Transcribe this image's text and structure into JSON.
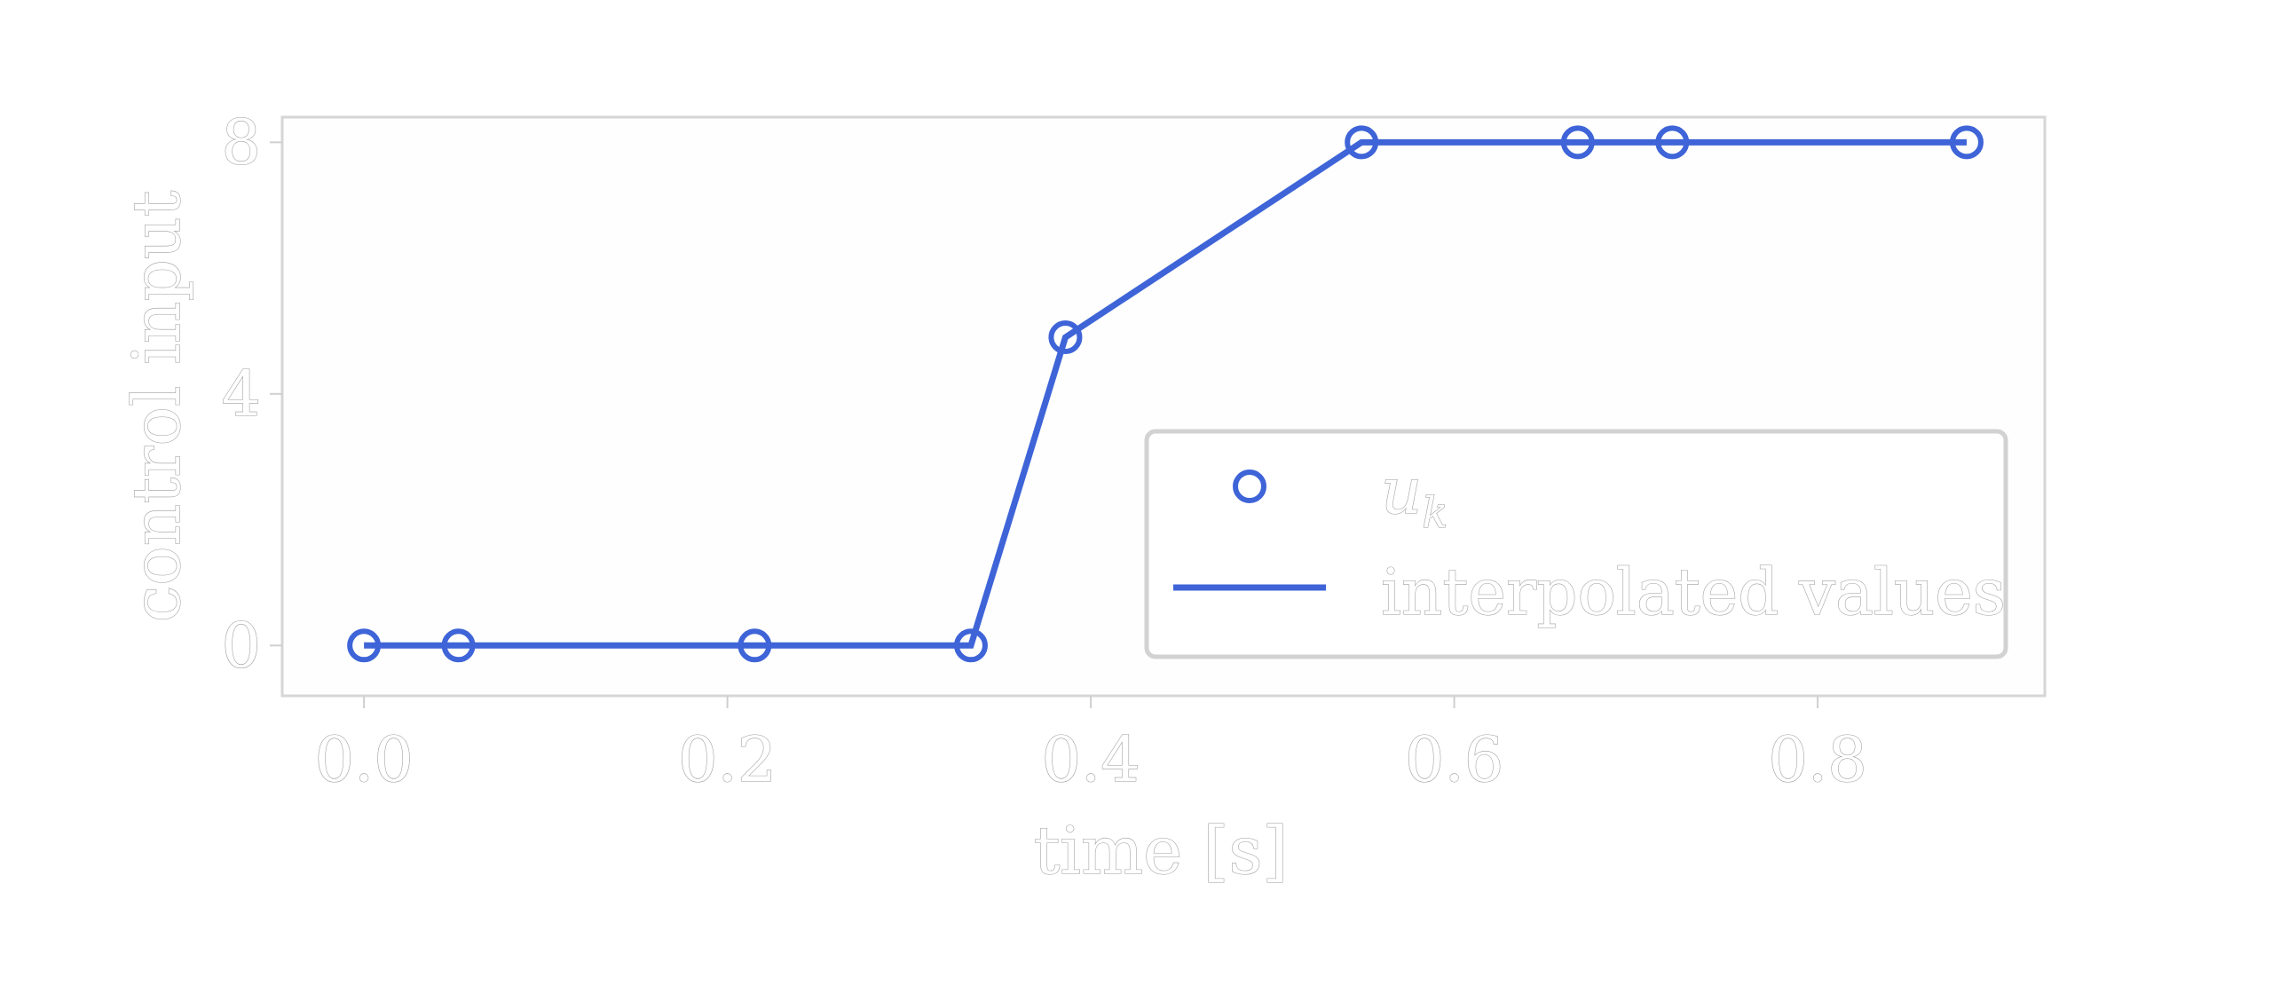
{
  "chart_data": {
    "type": "line",
    "xlabel": "time [s]",
    "ylabel": "control input",
    "xlim": [
      -0.045,
      0.925
    ],
    "ylim": [
      -0.8,
      8.4
    ],
    "xticks": [
      0.0,
      0.2,
      0.4,
      0.6,
      0.8
    ],
    "xtick_labels": [
      "0.0",
      "0.2",
      "0.4",
      "0.6",
      "0.8"
    ],
    "yticks": [
      0,
      4,
      8
    ],
    "ytick_labels": [
      "0",
      "4",
      "8"
    ],
    "grid": false,
    "legend_position": "lower-right",
    "color": "#3e64d8",
    "series": [
      {
        "name": "u_k",
        "style": "markers",
        "x": [
          0.0,
          0.052,
          0.215,
          0.334,
          0.386,
          0.549,
          0.668,
          0.72,
          0.882
        ],
        "y": [
          0,
          0,
          0,
          0,
          4.9,
          8,
          8,
          8,
          8
        ]
      },
      {
        "name": "interpolated values",
        "style": "line",
        "x": [
          0.0,
          0.052,
          0.215,
          0.334,
          0.386,
          0.549,
          0.668,
          0.72,
          0.882
        ],
        "y": [
          0,
          0,
          0,
          0,
          4.9,
          8,
          8,
          8,
          8
        ]
      }
    ],
    "legend": [
      {
        "symbol": "marker",
        "label_base": "u",
        "label_sub": "k"
      },
      {
        "symbol": "line",
        "label": "interpolated values"
      }
    ]
  }
}
